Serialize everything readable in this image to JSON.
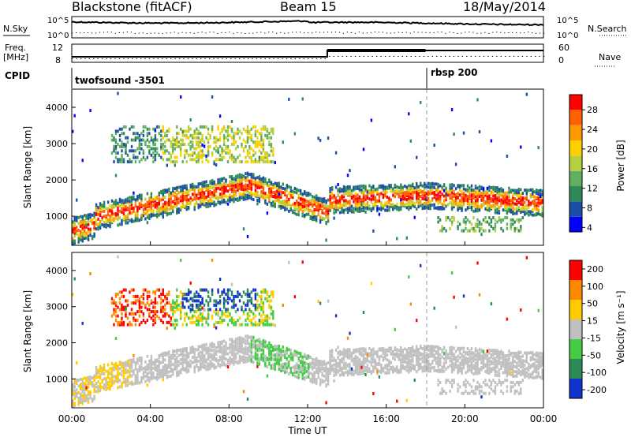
{
  "header": {
    "title": "Blackstone (fitACF)",
    "beam": "Beam 15",
    "date": "18/May/2014"
  },
  "panels": {
    "nsky_label": "N.Sky",
    "nsearch_label": "N.Search",
    "freq_label": "Freq.",
    "freq_unit": "[MHz]",
    "nave_label": "Nave",
    "cpid_label": "CPID",
    "noise_ticks_left": [
      "10^5",
      "10^0"
    ],
    "noise_ticks_right": [
      "10^5",
      "10^0"
    ],
    "freq_ticks": [
      "12",
      "8"
    ],
    "nave_ticks": [
      "60",
      "0"
    ],
    "cpid_segments": [
      {
        "name": "twofsound -3501",
        "start_hour": 0,
        "end_hour": 18
      },
      {
        "name": "rbsp 200",
        "start_hour": 18,
        "end_hour": 24
      }
    ]
  },
  "chart_data": [
    {
      "type": "heatmap",
      "title": "",
      "ylabel": "Slant Range [km]",
      "y_ticks": [
        "4000",
        "3000",
        "2000",
        "1000"
      ],
      "ylim": [
        200,
        4500
      ],
      "xlim_hours": [
        0,
        24
      ],
      "colorbar_label": "Power [dB]",
      "colorbar_ticks": [
        "28",
        "24",
        "20",
        "16",
        "12",
        "8",
        "4"
      ],
      "colorbar_range": [
        0,
        32
      ],
      "colors": [
        "#0000ff",
        "#1d4ea6",
        "#2e8b57",
        "#60b060",
        "#b4d040",
        "#ffd000",
        "#ff9900",
        "#ff6000",
        "#ff0000"
      ]
    },
    {
      "type": "heatmap",
      "title": "",
      "ylabel": "Slant Range [km]",
      "y_ticks": [
        "4000",
        "3000",
        "2000",
        "1000"
      ],
      "ylim": [
        200,
        4500
      ],
      "xlim_hours": [
        0,
        24
      ],
      "colorbar_label": "Velocity [m s⁻¹]",
      "colorbar_ticks": [
        "200",
        "100",
        "50",
        "15",
        "-15",
        "-50",
        "-100",
        "-200"
      ],
      "colorbar_range": [
        -250,
        250
      ],
      "colors": [
        "#1133cc",
        "#2e8b57",
        "#44cc44",
        "#c0c0c0",
        "#ffcc00",
        "#ff8800",
        "#ff0000"
      ]
    }
  ],
  "x_axis": {
    "ticks": [
      "00:00",
      "04:00",
      "08:00",
      "12:00",
      "16:00",
      "20:00",
      "00:00"
    ],
    "label": "Time UT"
  }
}
